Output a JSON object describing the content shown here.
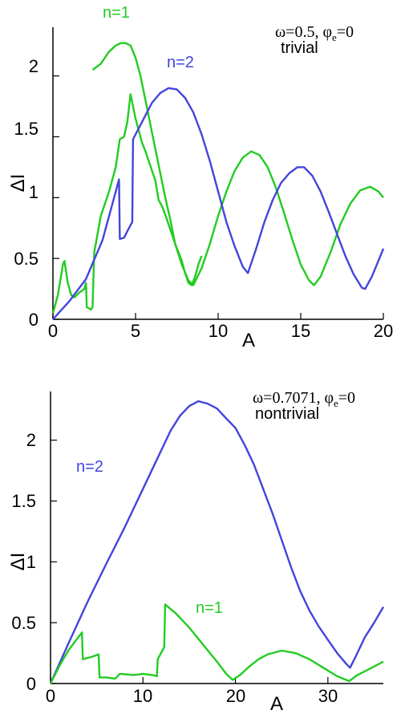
{
  "chart_data": [
    {
      "type": "line",
      "xlabel": "A",
      "ylabel": "ΔI",
      "xlim": [
        0,
        20
      ],
      "ylim": [
        0,
        2.4
      ],
      "xticks": [
        "0",
        "5",
        "10",
        "15",
        "20"
      ],
      "yticks": [
        "0",
        "0.5",
        "1",
        "1.5",
        "2"
      ],
      "annotation": {
        "line1": "ω=0.5, φe=0",
        "line1_main": "ω=0.5, φ",
        "line1_sub": "e",
        "line1_tail": "=0",
        "line2": "trivial"
      },
      "series": [
        {
          "name": "n=1",
          "color": "#22cc22",
          "points": [
            [
              0,
              0.05
            ],
            [
              0.3,
              0.2
            ],
            [
              0.6,
              0.45
            ],
            [
              0.7,
              0.48
            ],
            [
              0.9,
              0.3
            ],
            [
              1.1,
              0.2
            ],
            [
              1.3,
              0.18
            ],
            [
              1.6,
              0.22
            ],
            [
              1.9,
              0.25
            ],
            [
              2.0,
              0.3
            ],
            [
              2.05,
              0.1
            ],
            [
              2.3,
              0.08
            ],
            [
              2.4,
              0.1
            ],
            [
              2.5,
              0.55
            ],
            [
              2.9,
              0.85
            ],
            [
              3.4,
              1.05
            ],
            [
              3.8,
              1.25
            ],
            [
              4.05,
              1.48
            ],
            [
              4.3,
              1.5
            ],
            [
              4.5,
              1.62
            ],
            [
              4.7,
              1.85
            ],
            [
              5.0,
              1.65
            ],
            [
              5.2,
              1.55
            ],
            [
              5.4,
              1.45
            ],
            [
              5.6,
              1.38
            ],
            [
              5.8,
              1.3
            ],
            [
              6.0,
              1.22
            ],
            [
              6.2,
              1.14
            ],
            [
              6.4,
              0.98
            ],
            [
              6.6,
              0.93
            ],
            [
              6.8,
              0.86
            ],
            [
              7.0,
              0.78
            ],
            [
              7.2,
              0.7
            ],
            [
              7.4,
              0.62
            ],
            [
              7.6,
              0.55
            ],
            [
              7.8,
              0.48
            ],
            [
              8.0,
              0.38
            ],
            [
              8.2,
              0.3
            ],
            [
              8.4,
              0.28
            ],
            [
              8.6,
              0.35
            ],
            [
              8.8,
              0.45
            ],
            [
              9.0,
              0.52
            ]
          ],
          "extra_points": [
            [
              2.4,
              2.05
            ],
            [
              2.9,
              2.1
            ],
            [
              3.4,
              2.2
            ],
            [
              3.8,
              2.25
            ],
            [
              4.1,
              2.27
            ],
            [
              4.4,
              2.27
            ],
            [
              4.7,
              2.25
            ],
            [
              5.0,
              2.15
            ],
            [
              5.3,
              2.0
            ],
            [
              5.6,
              1.8
            ],
            [
              5.9,
              1.6
            ],
            [
              6.2,
              1.4
            ],
            [
              6.5,
              1.2
            ],
            [
              6.8,
              1.0
            ],
            [
              7.1,
              0.82
            ],
            [
              7.4,
              0.62
            ],
            [
              7.8,
              0.45
            ],
            [
              8.2,
              0.32
            ],
            [
              8.5,
              0.28
            ],
            [
              9.0,
              0.42
            ],
            [
              9.5,
              0.62
            ],
            [
              10.0,
              0.85
            ],
            [
              10.5,
              1.05
            ],
            [
              11.0,
              1.22
            ],
            [
              11.5,
              1.33
            ],
            [
              12.0,
              1.38
            ],
            [
              12.5,
              1.35
            ],
            [
              13.0,
              1.25
            ],
            [
              13.5,
              1.08
            ],
            [
              14.0,
              0.87
            ],
            [
              14.5,
              0.65
            ],
            [
              15.0,
              0.45
            ],
            [
              15.5,
              0.32
            ],
            [
              15.8,
              0.28
            ],
            [
              16.2,
              0.35
            ],
            [
              16.8,
              0.55
            ],
            [
              17.4,
              0.78
            ],
            [
              18.0,
              0.95
            ],
            [
              18.6,
              1.06
            ],
            [
              19.2,
              1.09
            ],
            [
              19.7,
              1.05
            ],
            [
              20.0,
              1.0
            ]
          ]
        },
        {
          "name": "n=2",
          "color": "#4444dd",
          "points": [
            [
              0,
              0.0
            ],
            [
              1,
              0.15
            ],
            [
              2,
              0.33
            ],
            [
              3,
              0.65
            ],
            [
              3.6,
              0.95
            ],
            [
              4.0,
              1.15
            ],
            [
              4.05,
              0.66
            ],
            [
              4.3,
              0.67
            ],
            [
              4.6,
              0.75
            ],
            [
              4.8,
              0.8
            ],
            [
              4.85,
              1.48
            ],
            [
              5.5,
              1.65
            ],
            [
              6.0,
              1.78
            ],
            [
              6.5,
              1.86
            ],
            [
              7.0,
              1.9
            ],
            [
              7.5,
              1.89
            ],
            [
              8.0,
              1.82
            ],
            [
              8.5,
              1.7
            ],
            [
              9.0,
              1.52
            ],
            [
              9.5,
              1.3
            ],
            [
              10.0,
              1.05
            ],
            [
              10.5,
              0.8
            ],
            [
              11.0,
              0.6
            ],
            [
              11.5,
              0.43
            ],
            [
              11.8,
              0.38
            ],
            [
              12.3,
              0.58
            ],
            [
              12.8,
              0.8
            ],
            [
              13.3,
              0.98
            ],
            [
              13.8,
              1.12
            ],
            [
              14.3,
              1.2
            ],
            [
              14.8,
              1.25
            ],
            [
              15.2,
              1.25
            ],
            [
              15.7,
              1.18
            ],
            [
              16.2,
              1.05
            ],
            [
              16.7,
              0.88
            ],
            [
              17.2,
              0.7
            ],
            [
              17.7,
              0.52
            ],
            [
              18.2,
              0.37
            ],
            [
              18.7,
              0.26
            ],
            [
              18.9,
              0.25
            ],
            [
              19.3,
              0.35
            ],
            [
              19.7,
              0.48
            ],
            [
              20.0,
              0.58
            ]
          ]
        }
      ]
    },
    {
      "type": "line",
      "xlabel": "A",
      "ylabel": "ΔI",
      "xlim": [
        0,
        36
      ],
      "ylim": [
        0,
        2.4
      ],
      "xticks": [
        "0",
        "10",
        "20",
        "30"
      ],
      "yticks": [
        "0",
        "0.5",
        "1",
        "1.5",
        "2"
      ],
      "annotation": {
        "line1": "ω=0.7071, φe=0",
        "line1_main": "ω=0.7071, φ",
        "line1_sub": "e",
        "line1_tail": "=0",
        "line2": "nontrivial"
      },
      "series": [
        {
          "name": "n=2",
          "color": "#4444dd",
          "points": [
            [
              0,
              0.0
            ],
            [
              2,
              0.34
            ],
            [
              4,
              0.67
            ],
            [
              6,
              0.98
            ],
            [
              8,
              1.28
            ],
            [
              10,
              1.6
            ],
            [
              12,
              1.92
            ],
            [
              13,
              2.08
            ],
            [
              14,
              2.2
            ],
            [
              15,
              2.28
            ],
            [
              16,
              2.32
            ],
            [
              17,
              2.3
            ],
            [
              18,
              2.26
            ],
            [
              19,
              2.18
            ],
            [
              20,
              2.1
            ],
            [
              21,
              1.96
            ],
            [
              22,
              1.8
            ],
            [
              23,
              1.6
            ],
            [
              24,
              1.4
            ],
            [
              25,
              1.18
            ],
            [
              26,
              0.96
            ],
            [
              27,
              0.76
            ],
            [
              28,
              0.6
            ],
            [
              29,
              0.47
            ],
            [
              30,
              0.36
            ],
            [
              31,
              0.25
            ],
            [
              32,
              0.16
            ],
            [
              32.4,
              0.13
            ],
            [
              33,
              0.22
            ],
            [
              34,
              0.38
            ],
            [
              35,
              0.5
            ],
            [
              36,
              0.63
            ]
          ]
        },
        {
          "name": "n=1",
          "color": "#22cc22",
          "points": [
            [
              0,
              0.0
            ],
            [
              1,
              0.15
            ],
            [
              2,
              0.28
            ],
            [
              3.4,
              0.42
            ],
            [
              3.5,
              0.2
            ],
            [
              4.5,
              0.22
            ],
            [
              5.2,
              0.24
            ],
            [
              5.3,
              0.05
            ],
            [
              6,
              0.05
            ],
            [
              7,
              0.04
            ],
            [
              7.5,
              0.08
            ],
            [
              9,
              0.07
            ],
            [
              10,
              0.08
            ],
            [
              11,
              0.07
            ],
            [
              11.5,
              0.06
            ],
            [
              11.6,
              0.2
            ],
            [
              12.3,
              0.3
            ],
            [
              12.4,
              0.65
            ],
            [
              13.5,
              0.58
            ],
            [
              15,
              0.46
            ],
            [
              16.5,
              0.32
            ],
            [
              18,
              0.18
            ],
            [
              19,
              0.08
            ],
            [
              19.7,
              0.03
            ],
            [
              20.5,
              0.07
            ],
            [
              21.5,
              0.14
            ],
            [
              22.5,
              0.2
            ],
            [
              23.5,
              0.24
            ],
            [
              25,
              0.27
            ],
            [
              26.5,
              0.25
            ],
            [
              28,
              0.2
            ],
            [
              29.5,
              0.13
            ],
            [
              31,
              0.06
            ],
            [
              32.3,
              0.02
            ],
            [
              33.2,
              0.07
            ],
            [
              34.5,
              0.12
            ],
            [
              36,
              0.18
            ]
          ]
        }
      ],
      "series_labels": {
        "n2": "n=2",
        "n1": "n=1"
      }
    }
  ]
}
